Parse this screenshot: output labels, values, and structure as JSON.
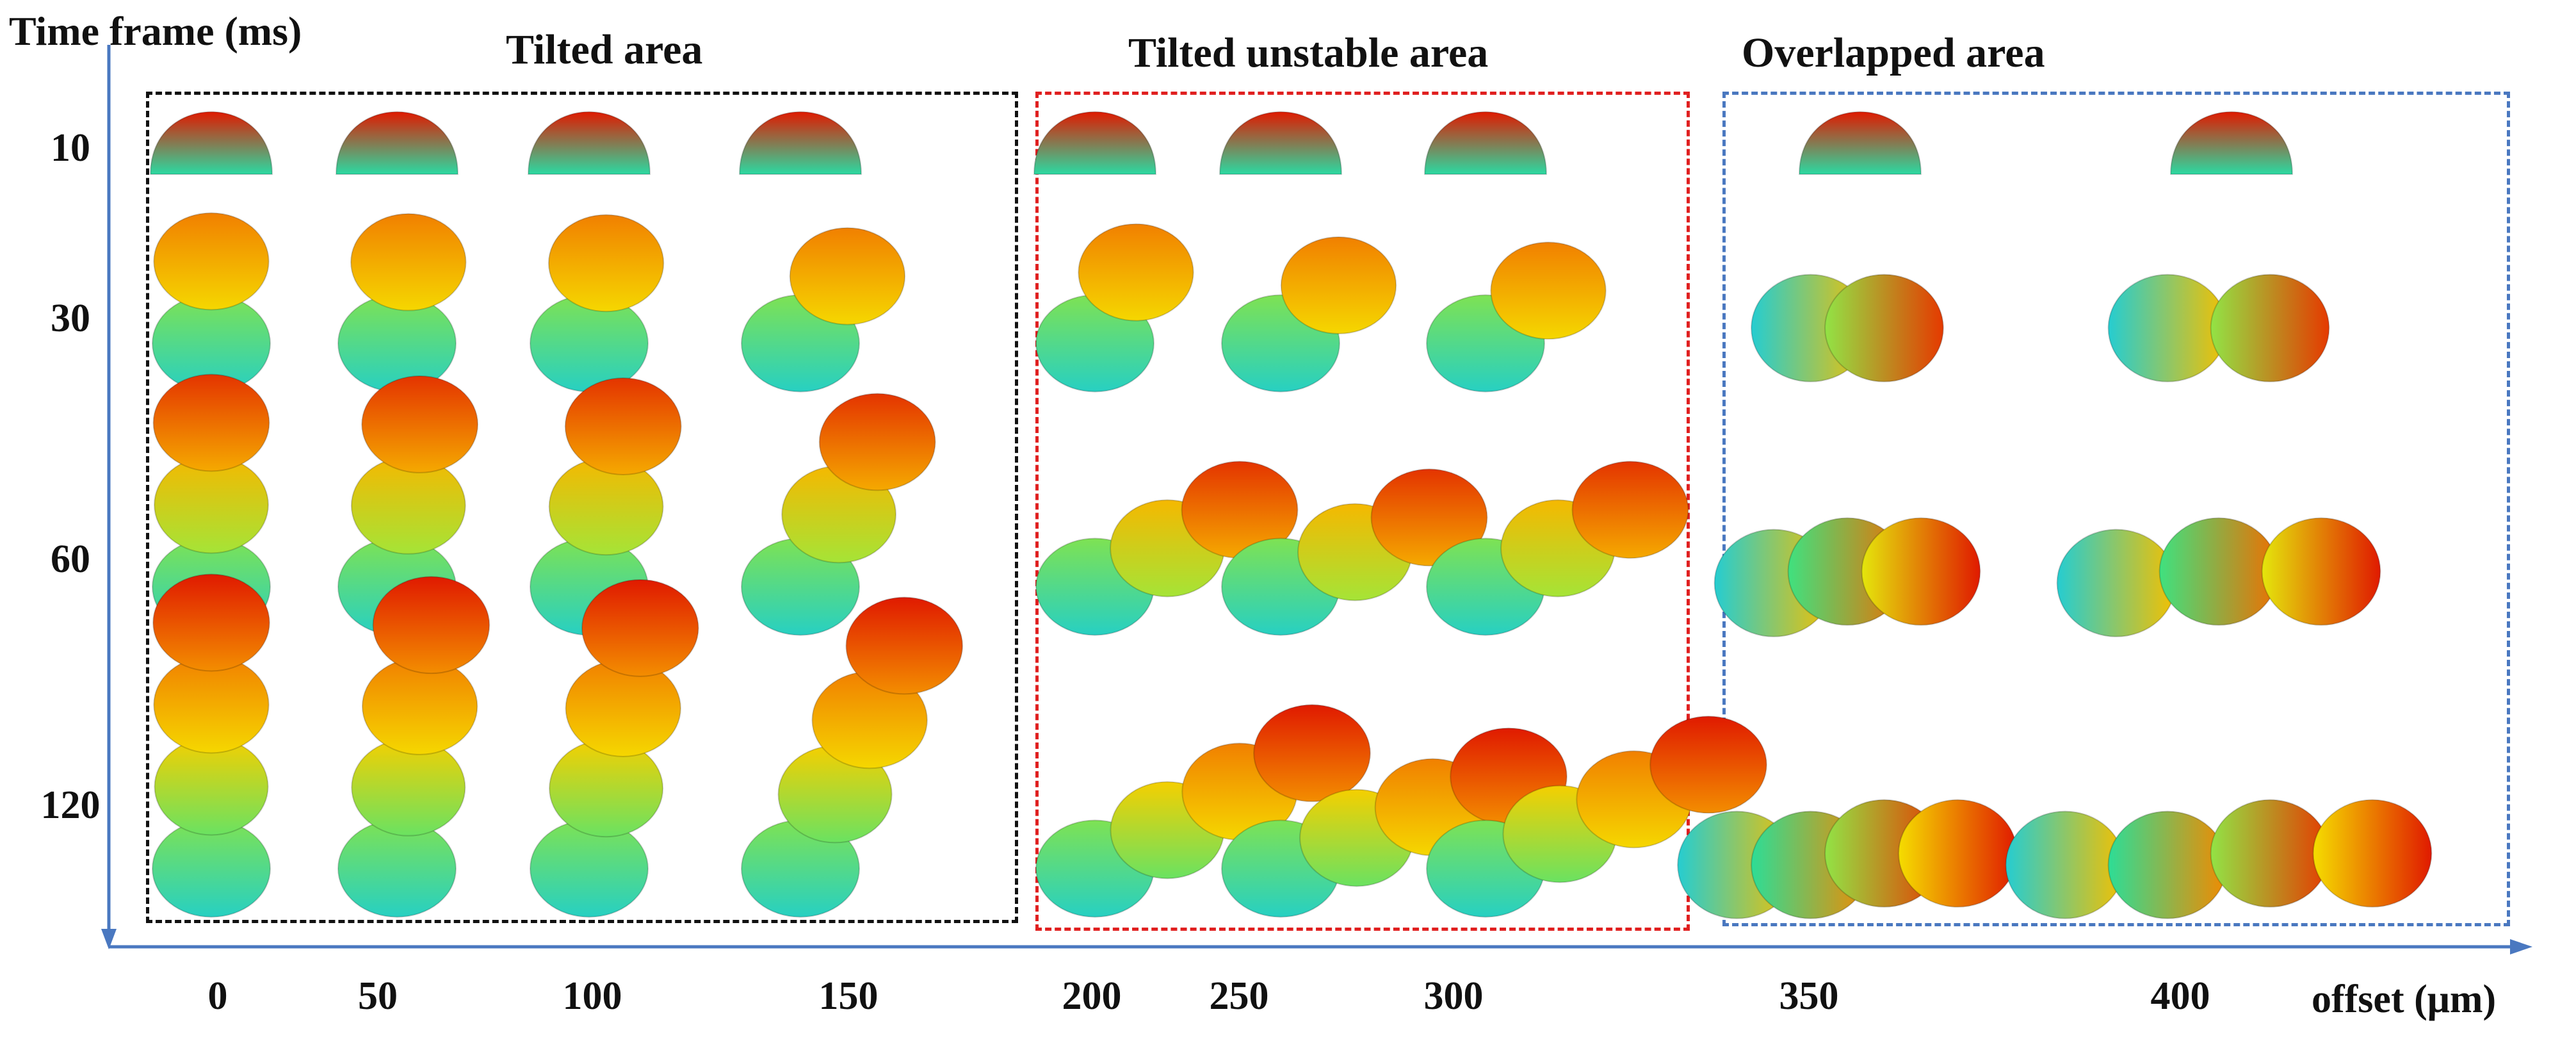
{
  "axes": {
    "y_title": "Time frame (ms)",
    "x_title": "offset (μm)"
  },
  "regions": [
    {
      "title": "Tilted area",
      "color": "#111111"
    },
    {
      "title": "Tilted unstable area",
      "color": "#e02020"
    },
    {
      "title": "Overlapped area",
      "color": "#4a78c0"
    }
  ],
  "rows": [
    "10",
    "30",
    "60",
    "120"
  ],
  "columns": [
    "0",
    "50",
    "100",
    "150",
    "200",
    "250",
    "300",
    "350",
    "400"
  ],
  "colors": {
    "axis": "#4a78c0",
    "droplet_gradient": [
      "#1e5fd0",
      "#22c6e8",
      "#2ee08a",
      "#f5e600",
      "#f59a00",
      "#e01a00"
    ]
  },
  "cells": [
    {
      "row": 0,
      "col": 0,
      "layers": 1,
      "tilt": 0,
      "layout": "stack"
    },
    {
      "row": 0,
      "col": 1,
      "layers": 1,
      "tilt": 0,
      "layout": "stack"
    },
    {
      "row": 0,
      "col": 2,
      "layers": 1,
      "tilt": 0,
      "layout": "stack"
    },
    {
      "row": 0,
      "col": 3,
      "layers": 1,
      "tilt": 0,
      "layout": "stack"
    },
    {
      "row": 0,
      "col": 4,
      "layers": 1,
      "tilt": 0,
      "layout": "stack"
    },
    {
      "row": 0,
      "col": 5,
      "layers": 1,
      "tilt": 0,
      "layout": "stack"
    },
    {
      "row": 0,
      "col": 6,
      "layers": 1,
      "tilt": 0,
      "layout": "stack"
    },
    {
      "row": 0,
      "col": 7,
      "layers": 1,
      "tilt": 0,
      "layout": "stack"
    },
    {
      "row": 0,
      "col": 8,
      "layers": 1,
      "tilt": 0,
      "layout": "stack"
    },
    {
      "row": 1,
      "col": 0,
      "layers": 2,
      "tilt": 0,
      "layout": "stack"
    },
    {
      "row": 1,
      "col": 1,
      "layers": 2,
      "tilt": 8,
      "layout": "stack"
    },
    {
      "row": 1,
      "col": 2,
      "layers": 2,
      "tilt": 12,
      "layout": "stack"
    },
    {
      "row": 1,
      "col": 3,
      "layers": 2,
      "tilt": 35,
      "layout": "stack"
    },
    {
      "row": 1,
      "col": 4,
      "layers": 2,
      "tilt": 30,
      "layout": "stack"
    },
    {
      "row": 1,
      "col": 5,
      "layers": 2,
      "tilt": 45,
      "layout": "stack"
    },
    {
      "row": 1,
      "col": 6,
      "layers": 2,
      "tilt": 50,
      "layout": "stack"
    },
    {
      "row": 1,
      "col": 7,
      "layers": 2,
      "tilt": 0,
      "layout": "overlap"
    },
    {
      "row": 1,
      "col": 8,
      "layers": 2,
      "tilt": 0,
      "layout": "overlap"
    },
    {
      "row": 2,
      "col": 0,
      "layers": 3,
      "tilt": 0,
      "layout": "stack"
    },
    {
      "row": 2,
      "col": 1,
      "layers": 3,
      "tilt": 8,
      "layout": "stack"
    },
    {
      "row": 2,
      "col": 2,
      "layers": 3,
      "tilt": 12,
      "layout": "stack"
    },
    {
      "row": 2,
      "col": 3,
      "layers": 3,
      "tilt": 28,
      "layout": "stack"
    },
    {
      "row": 2,
      "col": 4,
      "layers": 3,
      "tilt": 62,
      "layout": "stack"
    },
    {
      "row": 2,
      "col": 5,
      "layers": 3,
      "tilt": 65,
      "layout": "stack"
    },
    {
      "row": 2,
      "col": 6,
      "layers": 3,
      "tilt": 62,
      "layout": "stack"
    },
    {
      "row": 2,
      "col": 7,
      "layers": 3,
      "tilt": 0,
      "layout": "overlap"
    },
    {
      "row": 2,
      "col": 8,
      "layers": 3,
      "tilt": 0,
      "layout": "overlap"
    },
    {
      "row": 3,
      "col": 0,
      "layers": 4,
      "tilt": 0,
      "layout": "stack"
    },
    {
      "row": 3,
      "col": 1,
      "layers": 4,
      "tilt": 8,
      "layout": "stack"
    },
    {
      "row": 3,
      "col": 2,
      "layers": 4,
      "tilt": 12,
      "layout": "stack"
    },
    {
      "row": 3,
      "col": 3,
      "layers": 4,
      "tilt": 25,
      "layout": "stack"
    },
    {
      "row": 3,
      "col": 4,
      "layers": 4,
      "tilt": 62,
      "layout": "stack"
    },
    {
      "row": 3,
      "col": 5,
      "layers": 4,
      "tilt": 68,
      "layout": "stack"
    },
    {
      "row": 3,
      "col": 6,
      "layers": 4,
      "tilt": 65,
      "layout": "stack"
    },
    {
      "row": 3,
      "col": 7,
      "layers": 4,
      "tilt": 0,
      "layout": "overlap"
    },
    {
      "row": 3,
      "col": 8,
      "layers": 4,
      "tilt": 0,
      "layout": "overlap"
    }
  ]
}
